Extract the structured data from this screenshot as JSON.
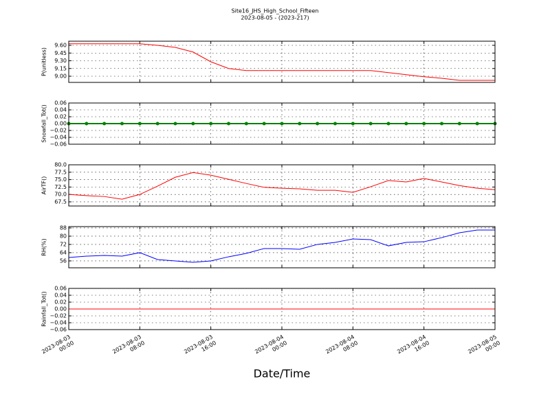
{
  "title": "Site16_JHS_High_School_Fifteen",
  "subtitle": "2023-08-05 - (2023-217)",
  "xlabel": "Date/Time",
  "x": [
    "2023-08-03 00:00",
    "2023-08-03 02:00",
    "2023-08-03 04:00",
    "2023-08-03 06:00",
    "2023-08-03 08:00",
    "2023-08-03 10:00",
    "2023-08-03 12:00",
    "2023-08-03 14:00",
    "2023-08-03 16:00",
    "2023-08-03 18:00",
    "2023-08-03 20:00",
    "2023-08-03 22:00",
    "2023-08-04 00:00",
    "2023-08-04 02:00",
    "2023-08-04 04:00",
    "2023-08-04 06:00",
    "2023-08-04 08:00",
    "2023-08-04 10:00",
    "2023-08-04 12:00",
    "2023-08-04 14:00",
    "2023-08-04 16:00",
    "2023-08-04 18:00",
    "2023-08-04 20:00",
    "2023-08-04 22:00",
    "2023-08-05 00:00"
  ],
  "xlim": [
    "2023-08-03 00:00",
    "2023-08-05 00:00"
  ],
  "xticks": [
    {
      "value": "2023-08-03 00:00",
      "label": "2023-08-03\n00:00"
    },
    {
      "value": "2023-08-03 08:00",
      "label": "2023-08-03\n08:00"
    },
    {
      "value": "2023-08-03 16:00",
      "label": "2023-08-03\n16:00"
    },
    {
      "value": "2023-08-04 00:00",
      "label": "2023-08-04\n00:00"
    },
    {
      "value": "2023-08-04 08:00",
      "label": "2023-08-04\n08:00"
    },
    {
      "value": "2023-08-04 16:00",
      "label": "2023-08-04\n16:00"
    },
    {
      "value": "2023-08-05 00:00",
      "label": "2023-08-05\n00:00"
    }
  ],
  "grid": true,
  "chart_data": [
    {
      "type": "line",
      "ylabel": "P(unitless)",
      "color": "#ff0000",
      "values": [
        9.63,
        9.63,
        9.63,
        9.63,
        9.63,
        9.6,
        9.56,
        9.47,
        9.28,
        9.15,
        9.11,
        9.11,
        9.11,
        9.11,
        9.11,
        9.11,
        9.11,
        9.11,
        9.07,
        9.03,
        8.99,
        8.96,
        8.92,
        8.92,
        8.92
      ],
      "ylim": [
        8.88,
        9.68
      ],
      "yticks": [
        {
          "value": 9.0,
          "label": "9.00"
        },
        9.15,
        {
          "value": 9.3,
          "label": "9.30"
        },
        9.45,
        {
          "value": 9.6,
          "label": "9.60"
        }
      ]
    },
    {
      "type": "line",
      "ylabel": "Snowfall_Tot()",
      "color": "#008000",
      "markers": true,
      "values": [
        0,
        0,
        0,
        0,
        0,
        0,
        0,
        0,
        0,
        0,
        0,
        0,
        0,
        0,
        0,
        0,
        0,
        0,
        0,
        0,
        0,
        0,
        0,
        0,
        0
      ],
      "ylim": [
        -0.06,
        0.06
      ],
      "yticks": [
        {
          "value": -0.06,
          "label": "−0.06"
        },
        {
          "value": -0.04,
          "label": "−0.04"
        },
        {
          "value": -0.02,
          "label": "−0.02"
        },
        {
          "value": 0,
          "label": "0.00"
        },
        0.02,
        0.04,
        0.06
      ]
    },
    {
      "type": "line",
      "ylabel": "AirTF()",
      "color": "#ff0000",
      "values": [
        70.0,
        69.6,
        69.3,
        68.4,
        70.0,
        72.8,
        75.8,
        77.4,
        76.5,
        75.1,
        73.7,
        72.4,
        72.1,
        71.9,
        71.4,
        71.4,
        70.7,
        72.6,
        74.7,
        74.2,
        75.4,
        74.2,
        73.0,
        72.1,
        71.6
      ],
      "ylim": [
        66.1,
        80
      ],
      "yticks": [
        67.5,
        {
          "value": 70,
          "label": "70.0"
        },
        72.5,
        {
          "value": 75,
          "label": "75.0"
        },
        77.5,
        {
          "value": 80,
          "label": "80.0"
        }
      ]
    },
    {
      "type": "line",
      "ylabel": "RH(%)",
      "color": "#0000ff",
      "values": [
        59.3,
        60.6,
        61.3,
        60.6,
        64,
        57.3,
        56,
        54.6,
        56,
        60,
        63.3,
        68,
        68,
        67.3,
        72,
        74,
        77.3,
        76.6,
        70.6,
        74,
        74.6,
        78.6,
        83.3,
        86,
        86
      ],
      "ylim": [
        49.3,
        89.3
      ],
      "yticks": [
        56,
        64,
        72,
        80,
        88
      ]
    },
    {
      "type": "line",
      "ylabel": "Rainfall_Tot()",
      "color": "#ff0000",
      "values": [
        0,
        0,
        0,
        0,
        0,
        0,
        0,
        0,
        0,
        0,
        0,
        0,
        0,
        0,
        0,
        0,
        0,
        0,
        0,
        0,
        0,
        0,
        0,
        0,
        0
      ],
      "ylim": [
        -0.06,
        0.06
      ],
      "yticks": [
        {
          "value": -0.06,
          "label": "−0.06"
        },
        {
          "value": -0.04,
          "label": "−0.04"
        },
        {
          "value": -0.02,
          "label": "−0.02"
        },
        {
          "value": 0,
          "label": "0.00"
        },
        0.02,
        0.04,
        0.06
      ]
    }
  ]
}
